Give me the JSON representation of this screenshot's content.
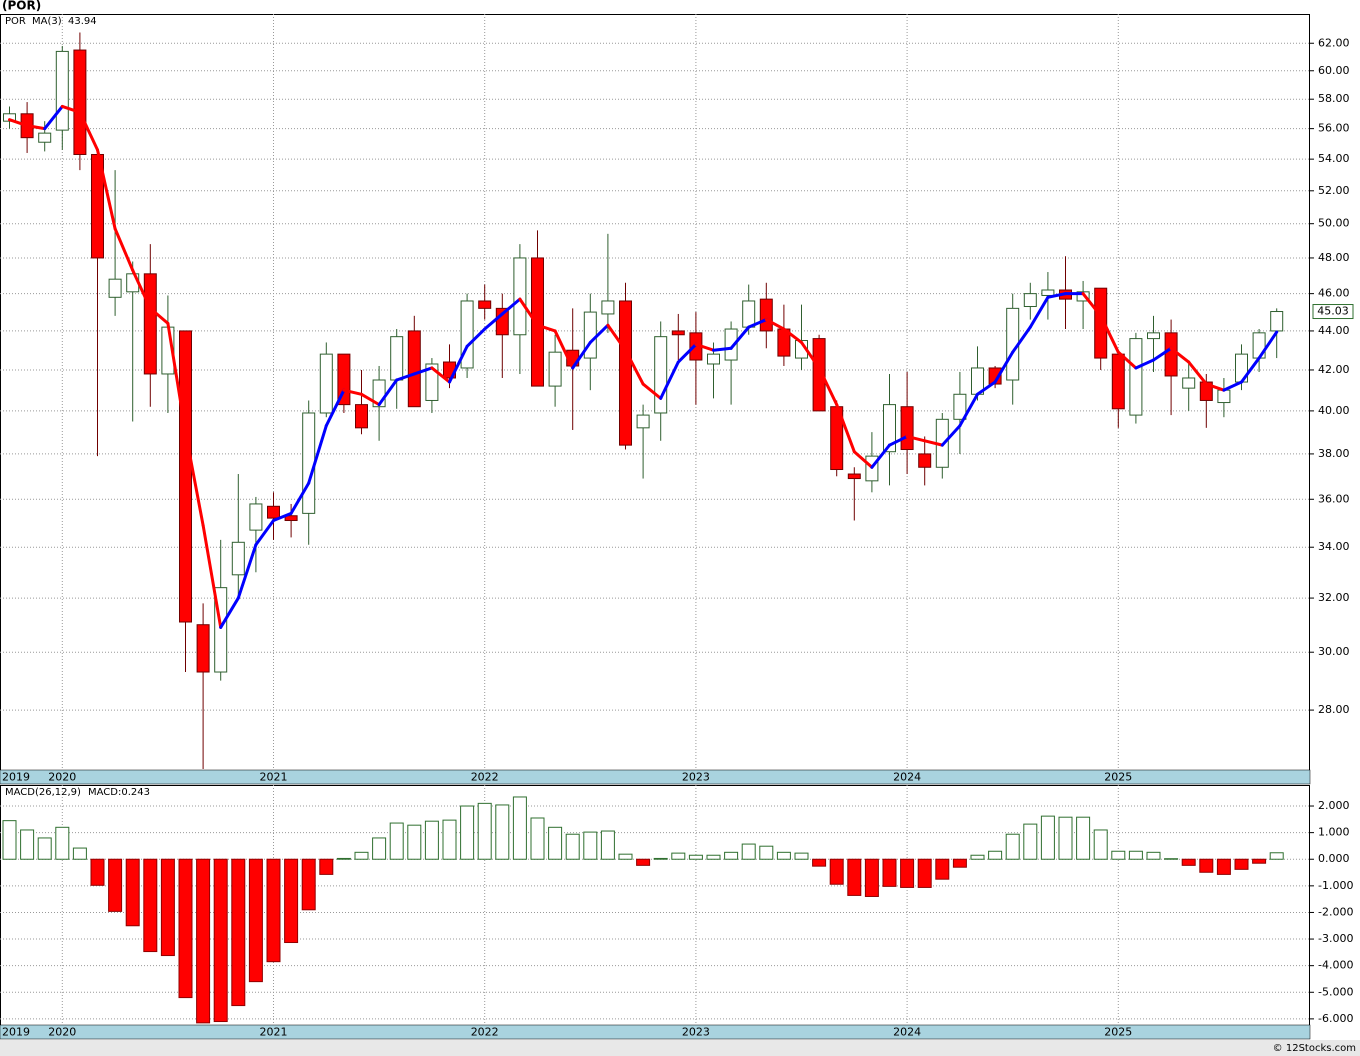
{
  "chart_data": [
    {
      "type": "candlestick",
      "title": "(POR)",
      "symbol": "POR",
      "categories": [
        "2019",
        null,
        null,
        "2020",
        null,
        null,
        null,
        null,
        null,
        null,
        null,
        null,
        null,
        null,
        null,
        "2021",
        null,
        null,
        null,
        null,
        null,
        null,
        null,
        null,
        null,
        null,
        null,
        "2022",
        null,
        null,
        null,
        null,
        null,
        null,
        null,
        null,
        null,
        null,
        null,
        "2023",
        null,
        null,
        null,
        null,
        null,
        null,
        null,
        null,
        null,
        null,
        null,
        "2024",
        null,
        null,
        null,
        null,
        null,
        null,
        null,
        null,
        null,
        null,
        null,
        "2025",
        null,
        null,
        null,
        null,
        null,
        null,
        null,
        null,
        null
      ],
      "open": [
        56.5,
        57.0,
        55.1,
        55.9,
        61.5,
        54.3,
        45.8,
        46.1,
        47.1,
        41.8,
        44.0,
        31.0,
        29.3,
        32.9,
        34.7,
        35.7,
        35.3,
        35.4,
        39.9,
        42.8,
        40.3,
        40.2,
        41.5,
        44.0,
        40.5,
        42.4,
        42.1,
        45.6,
        45.2,
        43.8,
        48.0,
        41.2,
        43.0,
        42.6,
        44.9,
        45.6,
        39.2,
        39.9,
        44.0,
        43.9,
        42.3,
        42.5,
        44.2,
        45.7,
        44.1,
        42.6,
        43.6,
        40.2,
        37.1,
        36.8,
        38.1,
        40.2,
        38.0,
        37.4,
        39.6,
        40.8,
        42.1,
        41.5,
        45.3,
        45.9,
        46.2,
        45.6,
        46.3,
        42.8,
        39.8,
        43.6,
        43.9,
        41.1,
        41.4,
        40.4,
        41.4,
        42.6,
        44.0
      ],
      "high": [
        57.5,
        57.8,
        56.5,
        61.8,
        62.8,
        54.5,
        53.3,
        47.8,
        48.8,
        45.9,
        44.0,
        31.8,
        34.3,
        37.1,
        36.1,
        36.3,
        35.8,
        40.5,
        43.4,
        42.8,
        42.0,
        42.2,
        44.1,
        44.8,
        42.6,
        43.3,
        46.0,
        46.5,
        46.0,
        48.8,
        49.6,
        43.8,
        45.2,
        46.0,
        49.4,
        46.6,
        40.3,
        44.5,
        44.9,
        45.0,
        43.4,
        44.5,
        46.5,
        46.6,
        45.4,
        45.4,
        43.8,
        40.5,
        37.4,
        39.0,
        41.8,
        41.9,
        38.8,
        39.9,
        41.9,
        43.2,
        42.2,
        46.0,
        46.6,
        47.2,
        48.1,
        46.7,
        46.3,
        42.8,
        43.9,
        44.8,
        44.6,
        42.3,
        41.8,
        41.6,
        43.3,
        44.1,
        45.2
      ],
      "low": [
        56.0,
        54.4,
        54.5,
        54.6,
        53.3,
        37.9,
        44.8,
        39.5,
        40.2,
        39.9,
        29.3,
        26.1,
        29.0,
        32.0,
        33.0,
        34.3,
        34.4,
        34.1,
        39.7,
        39.9,
        38.9,
        38.6,
        40.1,
        40.2,
        39.9,
        41.1,
        41.6,
        44.6,
        41.6,
        41.8,
        41.2,
        40.2,
        39.1,
        41.0,
        43.9,
        38.2,
        36.9,
        38.6,
        42.5,
        40.3,
        40.6,
        40.3,
        43.8,
        43.1,
        42.2,
        42.0,
        40.0,
        37.0,
        35.1,
        36.3,
        36.6,
        37.1,
        36.6,
        36.9,
        38.0,
        40.5,
        41.1,
        40.3,
        44.6,
        44.6,
        44.1,
        44.1,
        42.0,
        39.2,
        39.4,
        41.9,
        39.8,
        40.0,
        39.2,
        39.7,
        41.0,
        41.9,
        42.6
      ],
      "close": [
        57.0,
        55.4,
        55.7,
        61.4,
        54.3,
        48.0,
        46.8,
        47.1,
        41.8,
        44.2,
        31.1,
        29.3,
        32.4,
        34.2,
        35.8,
        35.2,
        35.1,
        39.9,
        42.8,
        40.3,
        39.2,
        41.5,
        43.7,
        40.2,
        42.3,
        41.6,
        45.6,
        45.2,
        43.8,
        48.0,
        41.2,
        42.9,
        42.2,
        45.0,
        45.6,
        38.4,
        39.8,
        43.7,
        43.8,
        42.5,
        42.8,
        44.1,
        45.6,
        44.0,
        42.7,
        43.5,
        40.0,
        37.3,
        36.9,
        37.9,
        40.3,
        38.2,
        37.4,
        39.6,
        40.8,
        42.1,
        41.3,
        45.2,
        46.0,
        46.2,
        45.7,
        46.1,
        42.6,
        40.1,
        43.6,
        43.9,
        41.7,
        41.6,
        40.5,
        41.0,
        42.8,
        43.9,
        45.03
      ],
      "up_color": "#ffffff",
      "up_stroke": "#2f5f2f",
      "down_color": "#ff0000",
      "down_stroke": "#700000",
      "overlay": {
        "name": "MA(3)",
        "up_color": "#0000ff",
        "down_color": "#ff0000",
        "values": [
          56.6,
          56.2,
          56.0,
          57.5,
          57.1,
          54.6,
          49.7,
          47.3,
          45.2,
          44.4,
          39.0,
          34.9,
          30.9,
          32.0,
          34.1,
          35.1,
          35.4,
          36.7,
          39.3,
          41.0,
          40.8,
          40.3,
          41.5,
          41.8,
          42.1,
          41.4,
          43.2,
          44.1,
          44.9,
          45.7,
          44.3,
          44.0,
          42.1,
          43.4,
          44.3,
          43.0,
          41.3,
          40.6,
          42.4,
          43.3,
          43.0,
          43.1,
          44.2,
          44.6,
          44.1,
          43.4,
          42.1,
          40.3,
          38.1,
          37.4,
          38.4,
          38.8,
          38.6,
          38.4,
          39.3,
          40.8,
          41.4,
          42.9,
          44.2,
          45.8,
          46.0,
          46.0,
          44.8,
          42.9,
          42.1,
          42.5,
          43.1,
          42.4,
          41.3,
          41.0,
          41.4,
          42.6,
          43.94
        ]
      },
      "ylim": [
        26.07,
        64.2
      ],
      "log_scale": true,
      "grid": true,
      "yticks": [
        {
          "value": 28,
          "label": "28.00"
        },
        {
          "value": 30,
          "label": "30.00"
        },
        {
          "value": 32,
          "label": "32.00"
        },
        {
          "value": 34,
          "label": "34.00"
        },
        {
          "value": 36,
          "label": "36.00"
        },
        {
          "value": 38,
          "label": "38.00"
        },
        {
          "value": 40,
          "label": "40.00"
        },
        {
          "value": 42,
          "label": "42.00"
        },
        {
          "value": 44,
          "label": "44.00"
        },
        {
          "value": 46,
          "label": "46.00"
        },
        {
          "value": 48,
          "label": "48.00"
        },
        {
          "value": 50,
          "label": "50.00"
        },
        {
          "value": 52,
          "label": "52.00"
        },
        {
          "value": 54,
          "label": "54.00"
        },
        {
          "value": 56,
          "label": "56.00"
        },
        {
          "value": 58,
          "label": "58.00"
        },
        {
          "value": 60,
          "label": "60.00"
        },
        {
          "value": 62,
          "label": "62.00"
        }
      ]
    },
    {
      "type": "bar",
      "name": "MACD(26,12,9)",
      "value_label": "MACD:0.243",
      "values": [
        1.45,
        1.1,
        0.8,
        1.2,
        0.42,
        -0.98,
        -1.96,
        -2.5,
        -3.47,
        -3.62,
        -5.2,
        -6.15,
        -6.1,
        -5.5,
        -4.6,
        -3.85,
        -3.13,
        -1.9,
        -0.57,
        0.03,
        0.26,
        0.8,
        1.36,
        1.28,
        1.43,
        1.47,
        2.0,
        2.1,
        2.04,
        2.34,
        1.55,
        1.2,
        0.94,
        1.02,
        1.06,
        0.19,
        -0.23,
        0.03,
        0.23,
        0.15,
        0.15,
        0.26,
        0.57,
        0.49,
        0.26,
        0.23,
        -0.26,
        -0.94,
        -1.36,
        -1.4,
        -1.02,
        -1.06,
        -1.06,
        -0.75,
        -0.3,
        0.15,
        0.3,
        0.94,
        1.32,
        1.62,
        1.58,
        1.58,
        1.1,
        0.3,
        0.3,
        0.26,
        0.02,
        -0.23,
        -0.49,
        -0.57,
        -0.38,
        -0.15,
        0.243
      ],
      "pos_color": "#ffffff",
      "pos_stroke": "#2f6f2f",
      "neg_color": "#ff0000",
      "neg_stroke": "#900000",
      "ylim": [
        -6.23,
        2.79
      ],
      "grid": true,
      "yticks": [
        {
          "value": 2,
          "label": "2.000"
        },
        {
          "value": 1,
          "label": "1.000"
        },
        {
          "value": 0,
          "label": "0.000"
        },
        {
          "value": -1,
          "label": "-1.000"
        },
        {
          "value": -2,
          "label": "-2.000"
        },
        {
          "value": -3,
          "label": "-3.000"
        },
        {
          "value": -4,
          "label": "-4.000"
        },
        {
          "value": -5,
          "label": "-5.000"
        },
        {
          "value": -6,
          "label": "-6.000"
        }
      ]
    }
  ],
  "footer": "© 12Stocks.com"
}
